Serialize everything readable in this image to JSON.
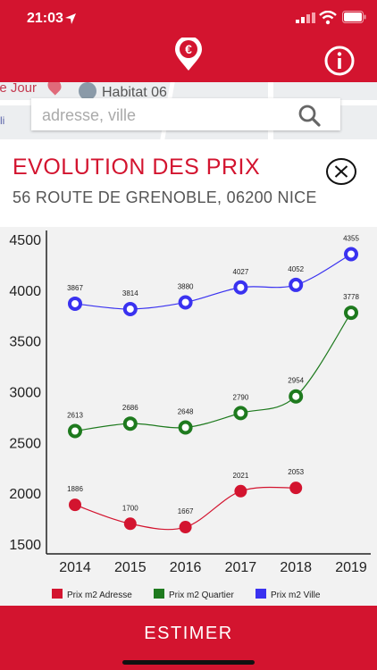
{
  "status_bar": {
    "time": "21:03"
  },
  "header": {
    "logo_icon": "euro-pin-icon",
    "info_icon": "info-icon"
  },
  "map": {
    "labels": [
      "le Jour",
      "Habitat 06",
      "li"
    ]
  },
  "search": {
    "placeholder": "adresse, ville",
    "value": ""
  },
  "panel": {
    "title": "EVOLUTION DES PRIX",
    "address": "56 ROUTE DE GRENOBLE, 06200 NICE",
    "close_icon": "close-circle-icon"
  },
  "chart_data": {
    "type": "line",
    "categories": [
      "2014",
      "2015",
      "2016",
      "2017",
      "2018",
      "2019"
    ],
    "series": [
      {
        "name": "Prix m2 Adresse",
        "color": "#d3142f",
        "values": [
          1886,
          1700,
          1667,
          2021,
          2053,
          null
        ]
      },
      {
        "name": "Prix m2 Quartier",
        "color": "#1e7a1e",
        "values": [
          2613,
          2686,
          2648,
          2790,
          2954,
          3778
        ]
      },
      {
        "name": "Prix m2 Ville",
        "color": "#3a32f0",
        "values": [
          3867,
          3814,
          3880,
          4027,
          4052,
          4355
        ]
      }
    ],
    "y_ticks": [
      "1500",
      "2000",
      "2500",
      "3000",
      "3500",
      "4000",
      "4500"
    ],
    "ylim": [
      1500,
      4500
    ],
    "legend_position": "bottom"
  },
  "footer": {
    "button_label": "ESTIMER"
  }
}
